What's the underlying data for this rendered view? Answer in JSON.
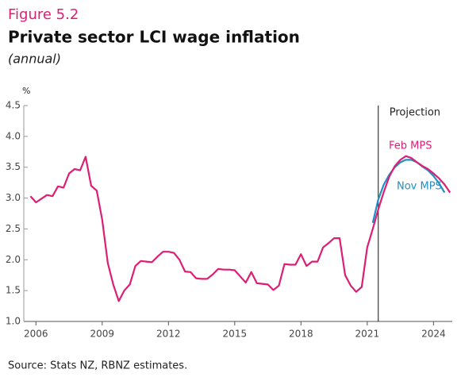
{
  "chart_data": {
    "type": "line",
    "figure_label": "Figure 5.2",
    "title": "Private sector LCI wage inflation",
    "subtitle": "(annual)",
    "y_unit": "%",
    "source": "Source: Stats NZ, RBNZ estimates.",
    "annotation": "Projection",
    "projection_start": 2021.5,
    "xlim": [
      2005.45,
      2024.85
    ],
    "xticks": [
      2006,
      2009,
      2012,
      2015,
      2018,
      2021,
      2024
    ],
    "ylim": [
      1,
      4.5
    ],
    "yticks": [
      {
        "value": 1,
        "label": "1.0"
      },
      1.5,
      {
        "value": 2,
        "label": "2.0"
      },
      2.5,
      {
        "value": 3,
        "label": "3.0"
      },
      3.5,
      {
        "value": 4,
        "label": "4.0"
      },
      4.5
    ],
    "grid": false,
    "series": [
      {
        "name": "Nov MPS",
        "color": "#1f8fc6",
        "x": [
          2021.25,
          2021.5,
          2021.75,
          2022,
          2022.25,
          2022.5,
          2022.75,
          2023,
          2023.25,
          2023.5,
          2023.75,
          2024,
          2024.25,
          2024.5
        ],
        "values": [
          2.6,
          2.98,
          3.22,
          3.38,
          3.5,
          3.58,
          3.62,
          3.62,
          3.58,
          3.51,
          3.45,
          3.36,
          3.24,
          3.09
        ]
      },
      {
        "name": "Feb MPS",
        "color": "#dc1f74",
        "x": [
          2005.75,
          2006,
          2006.25,
          2006.5,
          2006.75,
          2007,
          2007.25,
          2007.5,
          2007.75,
          2008,
          2008.25,
          2008.5,
          2008.75,
          2009,
          2009.25,
          2009.5,
          2009.75,
          2010,
          2010.25,
          2010.5,
          2010.75,
          2011,
          2011.25,
          2011.5,
          2011.75,
          2012,
          2012.25,
          2012.5,
          2012.75,
          2013,
          2013.25,
          2013.5,
          2013.75,
          2014,
          2014.25,
          2014.5,
          2014.75,
          2015,
          2015.25,
          2015.5,
          2015.75,
          2016,
          2016.25,
          2016.5,
          2016.75,
          2017,
          2017.25,
          2017.5,
          2017.75,
          2018,
          2018.25,
          2018.5,
          2018.75,
          2019,
          2019.25,
          2019.5,
          2019.75,
          2020,
          2020.25,
          2020.5,
          2020.75,
          2021,
          2021.25,
          2021.5,
          2021.75,
          2022,
          2022.25,
          2022.5,
          2022.75,
          2023,
          2023.25,
          2023.5,
          2023.75,
          2024,
          2024.25,
          2024.5,
          2024.75
        ],
        "values": [
          3.03,
          2.93,
          2.99,
          3.05,
          3.03,
          3.19,
          3.17,
          3.4,
          3.47,
          3.45,
          3.67,
          3.2,
          3.12,
          2.65,
          1.95,
          1.6,
          1.33,
          1.5,
          1.6,
          1.9,
          1.98,
          1.97,
          1.96,
          2.05,
          2.13,
          2.13,
          2.11,
          2.0,
          1.81,
          1.8,
          1.7,
          1.69,
          1.69,
          1.76,
          1.85,
          1.84,
          1.84,
          1.83,
          1.73,
          1.63,
          1.8,
          1.62,
          1.61,
          1.6,
          1.51,
          1.58,
          1.93,
          1.92,
          1.92,
          2.09,
          1.9,
          1.97,
          1.97,
          2.2,
          2.27,
          2.35,
          2.35,
          1.75,
          1.58,
          1.48,
          1.56,
          2.2,
          2.5,
          2.82,
          3.1,
          3.35,
          3.52,
          3.62,
          3.68,
          3.65,
          3.58,
          3.52,
          3.47,
          3.4,
          3.32,
          3.22,
          3.09
        ]
      }
    ]
  }
}
